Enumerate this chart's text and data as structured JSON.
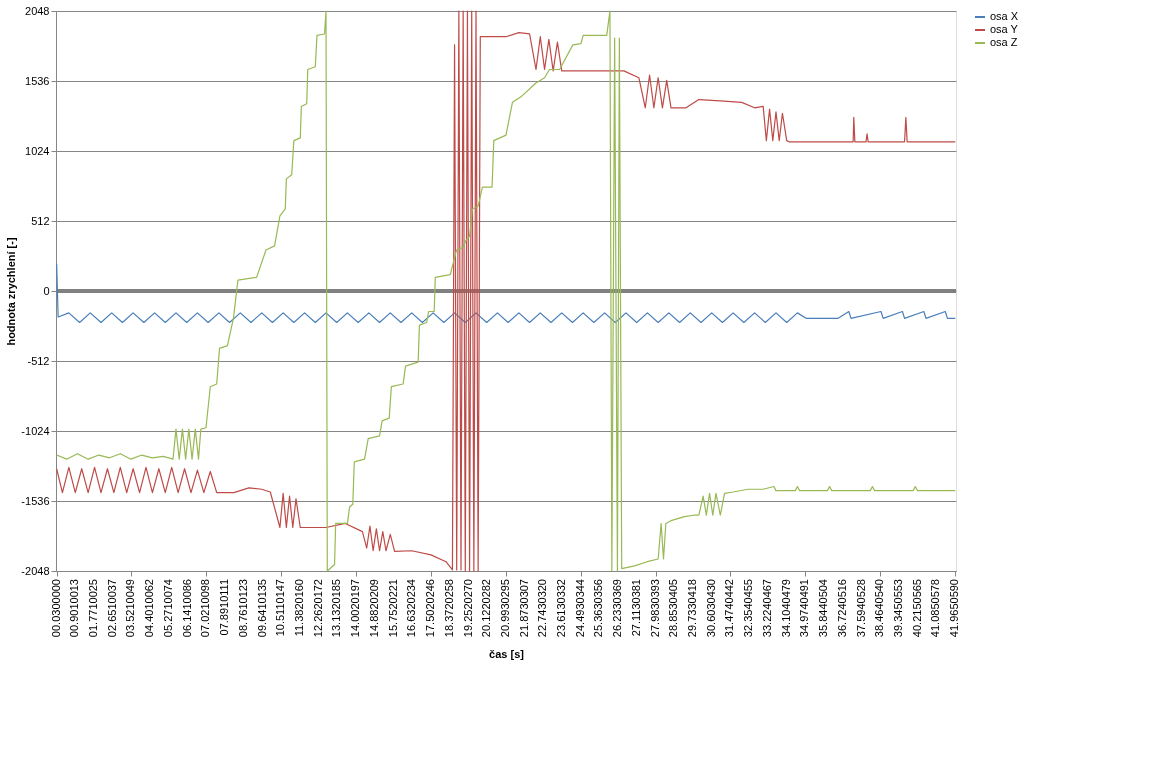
{
  "chart_data": {
    "type": "line",
    "xlabel": "čas [s]",
    "ylabel": "hodnota zrychlení [-]",
    "xlim": [
      0,
      42
    ],
    "ylim": [
      -2048,
      2048
    ],
    "yticks": [
      -2048,
      -1536,
      -1024,
      -512,
      0,
      512,
      1024,
      1536,
      2048
    ],
    "xticks": [
      {
        "value": 0.03,
        "label": "00.0300000"
      },
      {
        "value": 0.9010013,
        "label": "00.9010013"
      },
      {
        "value": 1.7710025,
        "label": "01.7710025"
      },
      {
        "value": 2.6510037,
        "label": "02.6510037"
      },
      {
        "value": 3.5210049,
        "label": "03.5210049"
      },
      {
        "value": 4.4010062,
        "label": "04.4010062"
      },
      {
        "value": 5.2710074,
        "label": "05.2710074"
      },
      {
        "value": 6.1410086,
        "label": "06.1410086"
      },
      {
        "value": 7.0210098,
        "label": "07.0210098"
      },
      {
        "value": 7.8910111,
        "label": "07.8910111"
      },
      {
        "value": 8.7610123,
        "label": "08.7610123"
      },
      {
        "value": 9.6410135,
        "label": "09.6410135"
      },
      {
        "value": 10.5110147,
        "label": "10.5110147"
      },
      {
        "value": 11.382016,
        "label": "11.3820160"
      },
      {
        "value": 12.2620172,
        "label": "12.2620172"
      },
      {
        "value": 13.1320185,
        "label": "13.1320185"
      },
      {
        "value": 14.0020197,
        "label": "14.0020197"
      },
      {
        "value": 14.8820209,
        "label": "14.8820209"
      },
      {
        "value": 15.7520221,
        "label": "15.7520221"
      },
      {
        "value": 16.6320234,
        "label": "16.6320234"
      },
      {
        "value": 17.5020246,
        "label": "17.5020246"
      },
      {
        "value": 18.3720258,
        "label": "18.3720258"
      },
      {
        "value": 19.252027,
        "label": "19.2520270"
      },
      {
        "value": 20.1220282,
        "label": "20.1220282"
      },
      {
        "value": 20.9930295,
        "label": "20.9930295"
      },
      {
        "value": 21.8730307,
        "label": "21.8730307"
      },
      {
        "value": 22.743032,
        "label": "22.7430320"
      },
      {
        "value": 23.6130332,
        "label": "23.6130332"
      },
      {
        "value": 24.4930344,
        "label": "24.4930344"
      },
      {
        "value": 25.3630356,
        "label": "25.3630356"
      },
      {
        "value": 26.2330369,
        "label": "26.2330369"
      },
      {
        "value": 27.1130381,
        "label": "27.1130381"
      },
      {
        "value": 27.9830393,
        "label": "27.9830393"
      },
      {
        "value": 28.8530405,
        "label": "28.8530405"
      },
      {
        "value": 29.7330418,
        "label": "29.7330418"
      },
      {
        "value": 30.603043,
        "label": "30.6030430"
      },
      {
        "value": 31.4740442,
        "label": "31.4740442"
      },
      {
        "value": 32.3540455,
        "label": "32.3540455"
      },
      {
        "value": 33.2240467,
        "label": "33.2240467"
      },
      {
        "value": 34.1040479,
        "label": "34.1040479"
      },
      {
        "value": 34.9740491,
        "label": "34.9740491"
      },
      {
        "value": 35.8440504,
        "label": "35.8440504"
      },
      {
        "value": 36.7240516,
        "label": "36.7240516"
      },
      {
        "value": 37.5940528,
        "label": "37.5940528"
      },
      {
        "value": 38.464054,
        "label": "38.4640540"
      },
      {
        "value": 39.3450553,
        "label": "39.3450553"
      },
      {
        "value": 40.2150565,
        "label": "40.2150565"
      },
      {
        "value": 41.0850578,
        "label": "41.0850578"
      },
      {
        "value": 41.965059,
        "label": "41.9650590"
      }
    ],
    "grid": "y",
    "legend": "right",
    "marker": "none",
    "line_style": "solid",
    "ref_lines": [
      {
        "axis": "y",
        "value": 0,
        "color": "#808080"
      }
    ],
    "series": [
      {
        "name": "osa X",
        "color": "#4a7ebb",
        "x": [
          0.03,
          0.1,
          0.6,
          1.1,
          1.6,
          2.1,
          2.6,
          3.1,
          3.6,
          4.1,
          4.6,
          5.1,
          5.6,
          6.1,
          6.6,
          7.1,
          7.6,
          8.1,
          8.6,
          9.1,
          9.6,
          10.1,
          10.6,
          11.1,
          11.6,
          12.1,
          12.6,
          13.1,
          13.6,
          14.1,
          14.6,
          15.1,
          15.6,
          16.1,
          16.6,
          17.1,
          17.6,
          18.1,
          18.6,
          19.1,
          19.6,
          20.1,
          20.6,
          21.1,
          21.6,
          22.1,
          22.6,
          23.1,
          23.6,
          24.1,
          24.6,
          25.1,
          25.6,
          26.1,
          26.6,
          27.1,
          27.6,
          28.1,
          28.6,
          29.1,
          29.6,
          30.1,
          30.6,
          31.1,
          31.6,
          32.1,
          32.6,
          33.1,
          33.6,
          34.1,
          34.6,
          35.0,
          36.5,
          37.0,
          37.1,
          38.5,
          38.6,
          39.5,
          39.6,
          40.5,
          40.6,
          41.5,
          41.6,
          41.965
        ],
        "values": [
          200,
          -190,
          -160,
          -230,
          -160,
          -230,
          -160,
          -230,
          -160,
          -230,
          -160,
          -230,
          -160,
          -230,
          -160,
          -230,
          -160,
          -230,
          -160,
          -230,
          -160,
          -230,
          -160,
          -230,
          -160,
          -230,
          -160,
          -230,
          -160,
          -230,
          -160,
          -230,
          -160,
          -230,
          -160,
          -230,
          -160,
          -230,
          -160,
          -230,
          -160,
          -230,
          -160,
          -230,
          -160,
          -230,
          -160,
          -230,
          -160,
          -230,
          -160,
          -230,
          -160,
          -230,
          -160,
          -230,
          -160,
          -230,
          -160,
          -230,
          -160,
          -230,
          -160,
          -230,
          -160,
          -230,
          -160,
          -230,
          -160,
          -230,
          -160,
          -200,
          -200,
          -150,
          -200,
          -150,
          -200,
          -150,
          -200,
          -150,
          -200,
          -150,
          -200,
          -200
        ]
      },
      {
        "name": "osa Y",
        "color": "#be4b48",
        "x": [
          0.03,
          0.3,
          0.6,
          0.9,
          1.2,
          1.5,
          1.8,
          2.1,
          2.4,
          2.7,
          3.0,
          3.3,
          3.6,
          3.9,
          4.2,
          4.5,
          4.8,
          5.1,
          5.4,
          5.7,
          6.0,
          6.3,
          6.6,
          6.9,
          7.2,
          7.5,
          7.8,
          8.3,
          9.0,
          9.6,
          10.0,
          10.45,
          10.6,
          10.75,
          10.9,
          11.05,
          11.2,
          11.4,
          12.6,
          13.5,
          14.3,
          14.5,
          14.65,
          14.8,
          14.95,
          15.1,
          15.25,
          15.4,
          15.6,
          15.8,
          16.6,
          17.5,
          18.2,
          18.5,
          18.6,
          18.7,
          18.8,
          18.9,
          19.0,
          19.1,
          19.2,
          19.3,
          19.4,
          19.5,
          19.6,
          19.7,
          19.8,
          20.5,
          21.0,
          21.6,
          22.1,
          22.4,
          22.6,
          22.8,
          23.0,
          23.2,
          23.4,
          23.6,
          23.8,
          24.0,
          25.8,
          26.5,
          27.2,
          27.5,
          27.7,
          27.9,
          28.1,
          28.3,
          28.5,
          28.7,
          29.4,
          30.0,
          31.0,
          32.0,
          32.6,
          33.0,
          33.15,
          33.3,
          33.45,
          33.6,
          33.75,
          33.9,
          34.1,
          34.2,
          37.2,
          37.23,
          37.28,
          37.8,
          37.85,
          37.9,
          39.6,
          39.66,
          39.72,
          41.965
        ],
        "values": [
          -1300,
          -1475,
          -1290,
          -1475,
          -1300,
          -1475,
          -1290,
          -1475,
          -1300,
          -1475,
          -1290,
          -1475,
          -1300,
          -1475,
          -1290,
          -1475,
          -1300,
          -1475,
          -1290,
          -1475,
          -1300,
          -1475,
          -1310,
          -1475,
          -1320,
          -1475,
          -1475,
          -1475,
          -1440,
          -1450,
          -1470,
          -1730,
          -1480,
          -1730,
          -1500,
          -1730,
          -1520,
          -1730,
          -1730,
          -1700,
          -1760,
          -1880,
          -1720,
          -1900,
          -1740,
          -1900,
          -1760,
          -1900,
          -1780,
          -1905,
          -1900,
          -1930,
          -1980,
          -2040,
          1800,
          -2040,
          2048,
          -2040,
          2048,
          -2048,
          2048,
          -2048,
          2048,
          -2048,
          2048,
          -2048,
          1860,
          1860,
          1860,
          1890,
          1880,
          1620,
          1860,
          1620,
          1840,
          1610,
          1820,
          1610,
          1610,
          1610,
          1610,
          1610,
          1560,
          1340,
          1580,
          1340,
          1560,
          1340,
          1540,
          1340,
          1340,
          1400,
          1390,
          1380,
          1340,
          1350,
          1100,
          1330,
          1100,
          1310,
          1100,
          1300,
          1100,
          1091,
          1091,
          1270,
          1091,
          1091,
          1150,
          1091,
          1091,
          1270,
          1091,
          1091
        ]
      },
      {
        "name": "osa Z",
        "color": "#98b954",
        "x": [
          0.03,
          0.5,
          1.0,
          1.5,
          2.0,
          2.5,
          3.0,
          3.5,
          4.0,
          4.5,
          5.0,
          5.46,
          5.6,
          5.75,
          5.9,
          6.05,
          6.2,
          6.35,
          6.5,
          6.65,
          6.76,
          7.0,
          7.2,
          7.5,
          7.63,
          8.0,
          8.28,
          8.49,
          9.36,
          9.8,
          10.2,
          10.45,
          10.7,
          10.75,
          11.0,
          11.1,
          11.4,
          11.45,
          11.7,
          11.75,
          12.1,
          12.18,
          12.53,
          12.6,
          12.66,
          13.0,
          13.05,
          13.6,
          13.7,
          13.85,
          13.92,
          14.4,
          14.57,
          15.1,
          15.22,
          15.55,
          15.65,
          16.2,
          16.31,
          16.9,
          16.96,
          17.3,
          17.39,
          17.65,
          17.7,
          18.4,
          18.69,
          19.0,
          19.13,
          19.3,
          19.43,
          19.7,
          19.9,
          20.35,
          20.43,
          21.0,
          21.3,
          21.7,
          22.38,
          22.8,
          23.03,
          23.5,
          24.12,
          24.5,
          24.6,
          25.7,
          25.85,
          25.94,
          26.07,
          26.2,
          26.29,
          26.4,
          27.0,
          27.59,
          28.1,
          28.24,
          28.35,
          28.46,
          28.7,
          29.33,
          29.76,
          30.0,
          30.2,
          30.35,
          30.5,
          30.65,
          30.8,
          31.0,
          31.2,
          31.6,
          32.3,
          33.0,
          33.5,
          33.6,
          34.5,
          34.6,
          34.7,
          36.0,
          36.1,
          36.2,
          38.0,
          38.1,
          38.2,
          40.0,
          40.1,
          40.2,
          41.965
        ],
        "values": [
          -1200,
          -1230,
          -1190,
          -1230,
          -1200,
          -1220,
          -1190,
          -1230,
          -1200,
          -1220,
          -1210,
          -1230,
          -1010,
          -1230,
          -1010,
          -1230,
          -1010,
          -1230,
          -1010,
          -1230,
          -1010,
          -1000,
          -700,
          -680,
          -420,
          -400,
          -200,
          80,
          100,
          300,
          330,
          550,
          600,
          820,
          850,
          1100,
          1120,
          1350,
          1370,
          1620,
          1640,
          1870,
          1880,
          2048,
          -2048,
          -2000,
          -1700,
          -1700,
          -1580,
          -1560,
          -1250,
          -1230,
          -1080,
          -1060,
          -950,
          -930,
          -700,
          -680,
          -550,
          -520,
          -250,
          -230,
          -150,
          -150,
          100,
          120,
          300,
          320,
          370,
          400,
          600,
          620,
          760,
          760,
          1100,
          1140,
          1380,
          1420,
          1520,
          1560,
          1620,
          1620,
          1800,
          1810,
          1870,
          1870,
          2048,
          -2048,
          1850,
          -2048,
          1850,
          -2030,
          -2010,
          -1980,
          -1960,
          -1700,
          -1960,
          -1700,
          -1680,
          -1650,
          -1640,
          -1640,
          -1500,
          -1640,
          -1480,
          -1640,
          -1480,
          -1640,
          -1480,
          -1470,
          -1450,
          -1450,
          -1430,
          -1460,
          -1460,
          -1430,
          -1460,
          -1460,
          -1430,
          -1460,
          -1460,
          -1430,
          -1460,
          -1460,
          -1430,
          -1460,
          -1460
        ]
      }
    ]
  }
}
